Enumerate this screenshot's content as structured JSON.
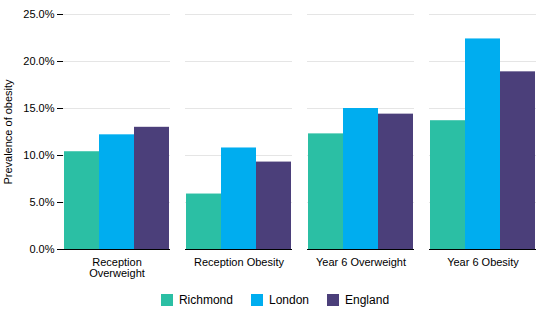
{
  "chart_data": {
    "type": "bar",
    "categories": [
      "Reception\nOverweight",
      "Reception Obesity",
      "Year 6 Overweight",
      "Year 6 Obesity"
    ],
    "series": [
      {
        "name": "Richmond",
        "color": "#2BBFA4",
        "values": [
          0.104,
          0.059,
          0.123,
          0.137
        ]
      },
      {
        "name": "London",
        "color": "#00ADEF",
        "values": [
          0.122,
          0.108,
          0.15,
          0.224
        ]
      },
      {
        "name": "England",
        "color": "#4B3F7A",
        "values": [
          0.13,
          0.093,
          0.144,
          0.189
        ]
      }
    ],
    "ylabel": "Prevalence of obesity",
    "ylim": [
      0.0,
      0.25
    ],
    "yticks": [
      {
        "value": 0.0,
        "label": "0.0%"
      },
      {
        "value": 0.05,
        "label": "5.0%"
      },
      {
        "value": 0.1,
        "label": "10.0%"
      },
      {
        "value": 0.15,
        "label": "15.0%"
      },
      {
        "value": 0.2,
        "label": "20.0%"
      },
      {
        "value": 0.25,
        "label": "25.0%"
      }
    ],
    "grid": true,
    "legend": "bottom"
  }
}
